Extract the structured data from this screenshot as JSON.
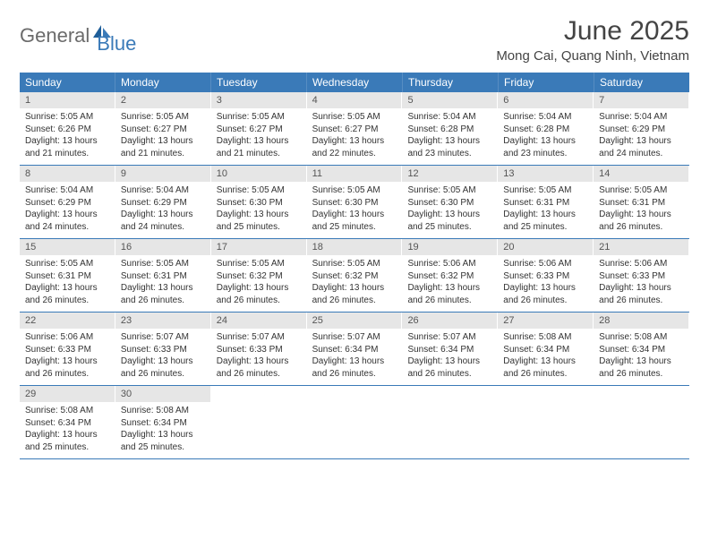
{
  "logo": {
    "text1": "General",
    "text2": "Blue"
  },
  "title": "June 2025",
  "location": "Mong Cai, Quang Ninh, Vietnam",
  "colors": {
    "header_bg": "#3a7ab8",
    "header_text": "#ffffff",
    "daynum_bg": "#e6e6e6",
    "week_border": "#3a7ab8",
    "logo_gray": "#6b6b6b",
    "logo_blue": "#3a7ab8",
    "text": "#333333"
  },
  "weekdays": [
    "Sunday",
    "Monday",
    "Tuesday",
    "Wednesday",
    "Thursday",
    "Friday",
    "Saturday"
  ],
  "weeks": [
    [
      {
        "num": "1",
        "sunrise": "Sunrise: 5:05 AM",
        "sunset": "Sunset: 6:26 PM",
        "daylight": "Daylight: 13 hours and 21 minutes."
      },
      {
        "num": "2",
        "sunrise": "Sunrise: 5:05 AM",
        "sunset": "Sunset: 6:27 PM",
        "daylight": "Daylight: 13 hours and 21 minutes."
      },
      {
        "num": "3",
        "sunrise": "Sunrise: 5:05 AM",
        "sunset": "Sunset: 6:27 PM",
        "daylight": "Daylight: 13 hours and 21 minutes."
      },
      {
        "num": "4",
        "sunrise": "Sunrise: 5:05 AM",
        "sunset": "Sunset: 6:27 PM",
        "daylight": "Daylight: 13 hours and 22 minutes."
      },
      {
        "num": "5",
        "sunrise": "Sunrise: 5:04 AM",
        "sunset": "Sunset: 6:28 PM",
        "daylight": "Daylight: 13 hours and 23 minutes."
      },
      {
        "num": "6",
        "sunrise": "Sunrise: 5:04 AM",
        "sunset": "Sunset: 6:28 PM",
        "daylight": "Daylight: 13 hours and 23 minutes."
      },
      {
        "num": "7",
        "sunrise": "Sunrise: 5:04 AM",
        "sunset": "Sunset: 6:29 PM",
        "daylight": "Daylight: 13 hours and 24 minutes."
      }
    ],
    [
      {
        "num": "8",
        "sunrise": "Sunrise: 5:04 AM",
        "sunset": "Sunset: 6:29 PM",
        "daylight": "Daylight: 13 hours and 24 minutes."
      },
      {
        "num": "9",
        "sunrise": "Sunrise: 5:04 AM",
        "sunset": "Sunset: 6:29 PM",
        "daylight": "Daylight: 13 hours and 24 minutes."
      },
      {
        "num": "10",
        "sunrise": "Sunrise: 5:05 AM",
        "sunset": "Sunset: 6:30 PM",
        "daylight": "Daylight: 13 hours and 25 minutes."
      },
      {
        "num": "11",
        "sunrise": "Sunrise: 5:05 AM",
        "sunset": "Sunset: 6:30 PM",
        "daylight": "Daylight: 13 hours and 25 minutes."
      },
      {
        "num": "12",
        "sunrise": "Sunrise: 5:05 AM",
        "sunset": "Sunset: 6:30 PM",
        "daylight": "Daylight: 13 hours and 25 minutes."
      },
      {
        "num": "13",
        "sunrise": "Sunrise: 5:05 AM",
        "sunset": "Sunset: 6:31 PM",
        "daylight": "Daylight: 13 hours and 25 minutes."
      },
      {
        "num": "14",
        "sunrise": "Sunrise: 5:05 AM",
        "sunset": "Sunset: 6:31 PM",
        "daylight": "Daylight: 13 hours and 26 minutes."
      }
    ],
    [
      {
        "num": "15",
        "sunrise": "Sunrise: 5:05 AM",
        "sunset": "Sunset: 6:31 PM",
        "daylight": "Daylight: 13 hours and 26 minutes."
      },
      {
        "num": "16",
        "sunrise": "Sunrise: 5:05 AM",
        "sunset": "Sunset: 6:31 PM",
        "daylight": "Daylight: 13 hours and 26 minutes."
      },
      {
        "num": "17",
        "sunrise": "Sunrise: 5:05 AM",
        "sunset": "Sunset: 6:32 PM",
        "daylight": "Daylight: 13 hours and 26 minutes."
      },
      {
        "num": "18",
        "sunrise": "Sunrise: 5:05 AM",
        "sunset": "Sunset: 6:32 PM",
        "daylight": "Daylight: 13 hours and 26 minutes."
      },
      {
        "num": "19",
        "sunrise": "Sunrise: 5:06 AM",
        "sunset": "Sunset: 6:32 PM",
        "daylight": "Daylight: 13 hours and 26 minutes."
      },
      {
        "num": "20",
        "sunrise": "Sunrise: 5:06 AM",
        "sunset": "Sunset: 6:33 PM",
        "daylight": "Daylight: 13 hours and 26 minutes."
      },
      {
        "num": "21",
        "sunrise": "Sunrise: 5:06 AM",
        "sunset": "Sunset: 6:33 PM",
        "daylight": "Daylight: 13 hours and 26 minutes."
      }
    ],
    [
      {
        "num": "22",
        "sunrise": "Sunrise: 5:06 AM",
        "sunset": "Sunset: 6:33 PM",
        "daylight": "Daylight: 13 hours and 26 minutes."
      },
      {
        "num": "23",
        "sunrise": "Sunrise: 5:07 AM",
        "sunset": "Sunset: 6:33 PM",
        "daylight": "Daylight: 13 hours and 26 minutes."
      },
      {
        "num": "24",
        "sunrise": "Sunrise: 5:07 AM",
        "sunset": "Sunset: 6:33 PM",
        "daylight": "Daylight: 13 hours and 26 minutes."
      },
      {
        "num": "25",
        "sunrise": "Sunrise: 5:07 AM",
        "sunset": "Sunset: 6:34 PM",
        "daylight": "Daylight: 13 hours and 26 minutes."
      },
      {
        "num": "26",
        "sunrise": "Sunrise: 5:07 AM",
        "sunset": "Sunset: 6:34 PM",
        "daylight": "Daylight: 13 hours and 26 minutes."
      },
      {
        "num": "27",
        "sunrise": "Sunrise: 5:08 AM",
        "sunset": "Sunset: 6:34 PM",
        "daylight": "Daylight: 13 hours and 26 minutes."
      },
      {
        "num": "28",
        "sunrise": "Sunrise: 5:08 AM",
        "sunset": "Sunset: 6:34 PM",
        "daylight": "Daylight: 13 hours and 26 minutes."
      }
    ],
    [
      {
        "num": "29",
        "sunrise": "Sunrise: 5:08 AM",
        "sunset": "Sunset: 6:34 PM",
        "daylight": "Daylight: 13 hours and 25 minutes."
      },
      {
        "num": "30",
        "sunrise": "Sunrise: 5:08 AM",
        "sunset": "Sunset: 6:34 PM",
        "daylight": "Daylight: 13 hours and 25 minutes."
      },
      {
        "empty": true
      },
      {
        "empty": true
      },
      {
        "empty": true
      },
      {
        "empty": true
      },
      {
        "empty": true
      }
    ]
  ]
}
